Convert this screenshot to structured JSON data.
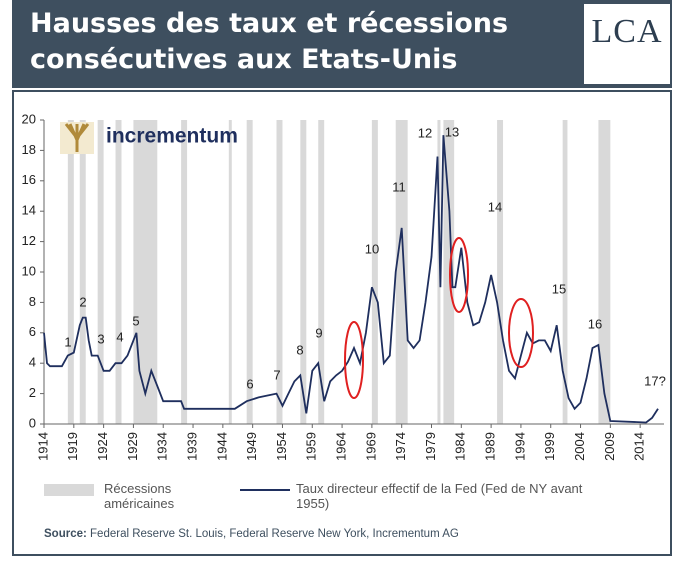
{
  "header": {
    "title_lines": [
      "Hausses des taux et récessions",
      "consécutives aux Etats-Unis"
    ],
    "logo": "LCA"
  },
  "chart_data": {
    "type": "line",
    "logo_text": "incrementum",
    "x": [
      1914,
      1914.5,
      1915,
      1917,
      1918,
      1919,
      1920,
      1920.5,
      1921,
      1921.5,
      1922,
      1923,
      1924,
      1925,
      1926,
      1927,
      1928,
      1929,
      1929.5,
      1930,
      1931,
      1932,
      1933,
      1934,
      1937,
      1937.5,
      1946,
      1948,
      1950,
      1953,
      1954,
      1955,
      1956,
      1957,
      1958,
      1959,
      1960,
      1961,
      1962,
      1963,
      1964,
      1965,
      1966,
      1967,
      1968,
      1969,
      1970,
      1971,
      1972,
      1973,
      1974,
      1975,
      1976,
      1977,
      1978,
      1979,
      1980,
      1980.5,
      1981,
      1982,
      1982.5,
      1983,
      1984,
      1985,
      1986,
      1987,
      1988,
      1989,
      1990,
      1991,
      1992,
      1993,
      1994,
      1995,
      1996,
      1997,
      1998,
      1999,
      2000,
      2001,
      2002,
      2003,
      2004,
      2005,
      2006,
      2007,
      2008,
      2009,
      2015,
      2016,
      2017
    ],
    "series": [
      {
        "name": "Taux directeur effectif de la Fed (Fed de NY avant 1955)",
        "color": "#1f2f5e",
        "values": [
          6,
          4,
          3.8,
          3.8,
          4.5,
          4.7,
          6.5,
          7,
          7,
          5.5,
          4.5,
          4.5,
          3.5,
          3.5,
          4,
          4,
          4.5,
          5.5,
          6,
          3.5,
          2,
          3.5,
          2.5,
          1.5,
          1.5,
          1,
          1,
          1.5,
          1.75,
          2,
          1.2,
          2,
          2.8,
          3.2,
          0.7,
          3.5,
          4,
          1.5,
          2.8,
          3.2,
          3.5,
          4.1,
          5,
          4,
          6,
          9,
          8,
          4,
          4.5,
          10,
          12.9,
          5.5,
          5,
          5.5,
          8,
          11,
          17.6,
          9,
          19,
          14,
          9,
          9,
          11.6,
          8,
          6.5,
          6.7,
          8,
          9.8,
          8,
          5.5,
          3.5,
          3,
          4.5,
          6,
          5.3,
          5.5,
          5.5,
          4.8,
          6.5,
          3.5,
          1.7,
          1,
          1.4,
          3,
          5,
          5.2,
          2,
          0.2,
          0.1,
          0.4,
          1
        ]
      }
    ],
    "recession_name": "Récessions américaines",
    "recession_color": "#d9d9d9",
    "recessions": [
      [
        1918,
        1919
      ],
      [
        1920,
        1921
      ],
      [
        1923,
        1924
      ],
      [
        1926,
        1927
      ],
      [
        1929,
        1933
      ],
      [
        1937,
        1938
      ],
      [
        1945,
        1945.5
      ],
      [
        1948,
        1949
      ],
      [
        1953,
        1954
      ],
      [
        1957,
        1958
      ],
      [
        1960,
        1961
      ],
      [
        1969,
        1970
      ],
      [
        1973,
        1975
      ],
      [
        1980,
        1980.5
      ],
      [
        1981,
        1982.8
      ],
      [
        1990,
        1991
      ],
      [
        2001,
        2001.8
      ],
      [
        2007,
        2009
      ]
    ],
    "annotations": [
      "1",
      "2",
      "3",
      "4",
      "5",
      "6",
      "7",
      "8",
      "9",
      "10",
      "11",
      "12",
      "13",
      "14",
      "15",
      "16",
      "17?"
    ],
    "xlim": [
      1914,
      2018
    ],
    "ylim": [
      0,
      20
    ],
    "xticks": [
      1914,
      1919,
      1924,
      1929,
      1934,
      1939,
      1944,
      1949,
      1954,
      1959,
      1964,
      1969,
      1974,
      1979,
      1984,
      1989,
      1994,
      1999,
      2004,
      2009,
      2014
    ],
    "yticks": [
      0,
      2,
      4,
      6,
      8,
      10,
      12,
      14,
      16,
      18,
      20
    ],
    "source_label": "Source:",
    "source": "Federal Reserve St. Louis, Federal Reserve New York, Incrementum AG"
  }
}
